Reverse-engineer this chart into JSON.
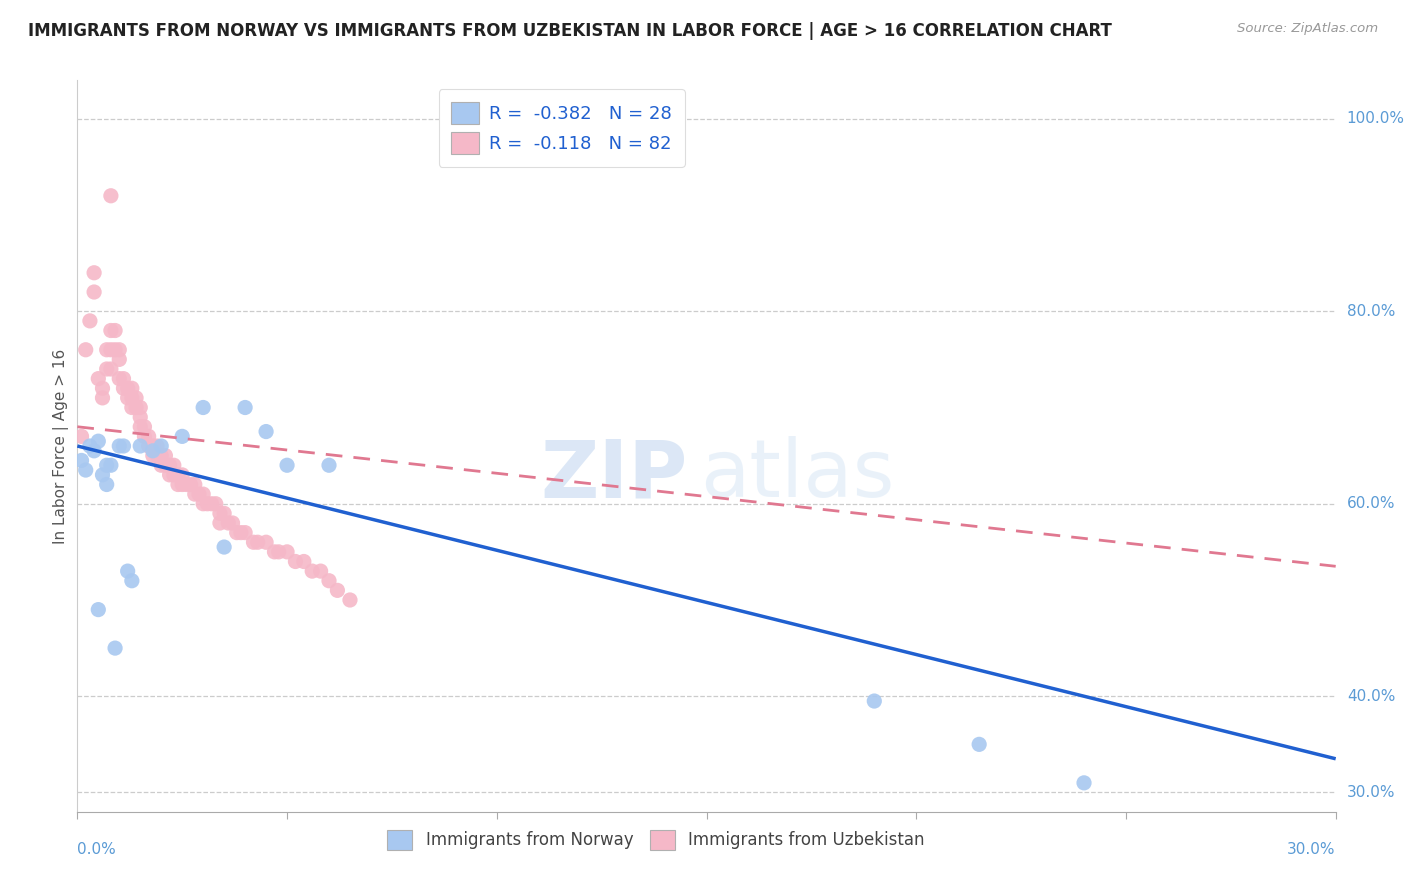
{
  "title": "IMMIGRANTS FROM NORWAY VS IMMIGRANTS FROM UZBEKISTAN IN LABOR FORCE | AGE > 16 CORRELATION CHART",
  "source": "Source: ZipAtlas.com",
  "ylabel": "In Labor Force | Age > 16",
  "norway_color": "#a8c8f0",
  "uzbekistan_color": "#f5b8c8",
  "norway_line_color": "#2060d0",
  "uzbekistan_line_color": "#e07890",
  "R_norway": -0.382,
  "N_norway": 28,
  "R_uzbekistan": -0.118,
  "N_uzbekistan": 82,
  "watermark_zip": "ZIP",
  "watermark_atlas": "atlas",
  "background_color": "#ffffff",
  "grid_color": "#cccccc",
  "xlim": [
    0.0,
    0.3
  ],
  "ylim": [
    0.28,
    1.04
  ],
  "right_ytick_vals": [
    1.0,
    0.8,
    0.6,
    0.4,
    0.3
  ],
  "right_ytick_labels": [
    "100.0%",
    "80.0%",
    "60.0%",
    "40.0%",
    "30.0%"
  ],
  "norway_x": [
    0.001,
    0.002,
    0.003,
    0.004,
    0.005,
    0.005,
    0.006,
    0.007,
    0.007,
    0.008,
    0.009,
    0.01,
    0.011,
    0.012,
    0.013,
    0.015,
    0.018,
    0.02,
    0.025,
    0.03,
    0.035,
    0.04,
    0.045,
    0.05,
    0.06,
    0.19,
    0.215,
    0.24
  ],
  "norway_y": [
    0.645,
    0.635,
    0.66,
    0.655,
    0.665,
    0.49,
    0.63,
    0.64,
    0.62,
    0.64,
    0.45,
    0.66,
    0.66,
    0.53,
    0.52,
    0.66,
    0.655,
    0.66,
    0.67,
    0.7,
    0.555,
    0.7,
    0.675,
    0.64,
    0.64,
    0.395,
    0.35,
    0.31
  ],
  "uzbekistan_x": [
    0.005,
    0.006,
    0.006,
    0.007,
    0.007,
    0.008,
    0.008,
    0.008,
    0.009,
    0.009,
    0.01,
    0.01,
    0.01,
    0.011,
    0.011,
    0.012,
    0.012,
    0.013,
    0.013,
    0.013,
    0.014,
    0.014,
    0.015,
    0.015,
    0.015,
    0.016,
    0.016,
    0.017,
    0.017,
    0.018,
    0.018,
    0.019,
    0.019,
    0.02,
    0.02,
    0.021,
    0.021,
    0.022,
    0.022,
    0.023,
    0.023,
    0.024,
    0.024,
    0.025,
    0.025,
    0.026,
    0.027,
    0.028,
    0.028,
    0.029,
    0.03,
    0.03,
    0.031,
    0.032,
    0.033,
    0.034,
    0.034,
    0.035,
    0.036,
    0.037,
    0.038,
    0.039,
    0.04,
    0.042,
    0.043,
    0.045,
    0.047,
    0.048,
    0.05,
    0.052,
    0.054,
    0.056,
    0.058,
    0.06,
    0.062,
    0.065,
    0.001,
    0.002,
    0.003,
    0.004,
    0.004,
    0.008
  ],
  "uzbekistan_y": [
    0.73,
    0.72,
    0.71,
    0.76,
    0.74,
    0.78,
    0.76,
    0.74,
    0.78,
    0.76,
    0.76,
    0.75,
    0.73,
    0.73,
    0.72,
    0.72,
    0.71,
    0.72,
    0.71,
    0.7,
    0.71,
    0.7,
    0.7,
    0.69,
    0.68,
    0.68,
    0.67,
    0.67,
    0.66,
    0.66,
    0.65,
    0.66,
    0.65,
    0.65,
    0.64,
    0.65,
    0.64,
    0.64,
    0.63,
    0.64,
    0.63,
    0.63,
    0.62,
    0.63,
    0.62,
    0.62,
    0.62,
    0.62,
    0.61,
    0.61,
    0.61,
    0.6,
    0.6,
    0.6,
    0.6,
    0.59,
    0.58,
    0.59,
    0.58,
    0.58,
    0.57,
    0.57,
    0.57,
    0.56,
    0.56,
    0.56,
    0.55,
    0.55,
    0.55,
    0.54,
    0.54,
    0.53,
    0.53,
    0.52,
    0.51,
    0.5,
    0.67,
    0.76,
    0.79,
    0.82,
    0.84,
    0.92
  ],
  "norway_line_x0": 0.0,
  "norway_line_y0": 0.66,
  "norway_line_x1": 0.3,
  "norway_line_y1": 0.335,
  "uzbekistan_line_x0": 0.0,
  "uzbekistan_line_y0": 0.68,
  "uzbekistan_line_x1": 0.3,
  "uzbekistan_line_y1": 0.535
}
